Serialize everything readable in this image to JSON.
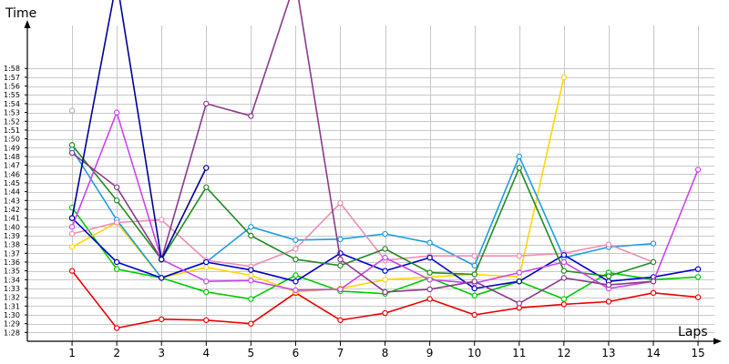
{
  "chart_data": {
    "type": "line",
    "xlabel": "Laps",
    "ylabel": "Time",
    "xlim": [
      0,
      15.5
    ],
    "ylim": [
      "1:27",
      "2:09"
    ],
    "grid": true,
    "y_tick_labels": [
      "1:28",
      "1:29",
      "1:30",
      "1:31",
      "1:32",
      "1:33",
      "1:34",
      "1:35",
      "1:36",
      "1:37",
      "1:38",
      "1:39",
      "1:40",
      "1:41",
      "1:42",
      "1:43",
      "1:44",
      "1:45",
      "1:46",
      "1:47",
      "1:48",
      "1:49",
      "1:50",
      "1:51",
      "1:52",
      "1:53",
      "1:54",
      "1:55",
      "1:56",
      "1:57",
      "1:58"
    ],
    "x_tick_labels": [
      "1",
      "2",
      "3",
      "4",
      "5",
      "6",
      "7",
      "8",
      "9",
      "10",
      "11",
      "12",
      "13",
      "14",
      "15"
    ],
    "series": [
      {
        "color": "#ee0000",
        "x": [
          1,
          2,
          3,
          4,
          5,
          6,
          7,
          8,
          9,
          10,
          11,
          12,
          13,
          14,
          15
        ],
        "y": [
          "1:35.0",
          "1:28.5",
          "1:29.5",
          "1:29.4",
          "1:29.0",
          "1:32.5",
          "1:29.4",
          "1:30.2",
          "1:31.8",
          "1:30.0",
          "1:30.8",
          "1:31.2",
          "1:31.5",
          "1:32.5",
          "1:32.0"
        ]
      },
      {
        "color": "#00cc00",
        "x": [
          1,
          2,
          3,
          4,
          5,
          6,
          7,
          8,
          9,
          10,
          11,
          12,
          13,
          14,
          15
        ],
        "y": [
          "1:42.2",
          "1:35.2",
          "1:34.2",
          "1:32.6",
          "1:31.8",
          "1:34.5",
          "1:32.7",
          "1:32.4",
          "1:34.2",
          "1:32.2",
          "1:33.8",
          "1:31.8",
          "1:34.8",
          "1:34.0",
          "1:34.3"
        ]
      },
      {
        "color": "#ffd700",
        "x": [
          1,
          2,
          3,
          4,
          5,
          6,
          7,
          8,
          9,
          10,
          11,
          12
        ],
        "y": [
          "1:37.7",
          "1:40.5",
          "1:34.2",
          "1:35.4",
          "1:34.5",
          "1:32.6",
          "1:33.0",
          "1:34.0",
          "1:34.3",
          "1:34.6",
          "1:34.3",
          "1:57.0"
        ]
      },
      {
        "color": "#1e9be6",
        "x": [
          1,
          2,
          3,
          4,
          5,
          6,
          7,
          8,
          9,
          10,
          11,
          12,
          13,
          14
        ],
        "y": [
          "1:48.8",
          "1:40.8",
          "1:34.2",
          "1:36.0",
          "1:40.0",
          "1:38.5",
          "1:38.6",
          "1:39.2",
          "1:38.2",
          "1:35.6",
          "1:48.0",
          "1:36.5",
          "1:37.7",
          "1:38.1"
        ]
      },
      {
        "color": "#f08cb4",
        "x": [
          1,
          2,
          3,
          4,
          5,
          6,
          7,
          8,
          9,
          10,
          11,
          12,
          13,
          14
        ],
        "y": [
          "1:39.2",
          "1:40.5",
          "1:40.8",
          "1:36.2",
          "1:35.5",
          "1:37.5",
          "1:42.7",
          "1:36.2",
          "1:36.7",
          "1:36.7",
          "1:36.7",
          "1:37.0",
          "1:38.0",
          "1:36.0"
        ]
      },
      {
        "color": "#0000cc",
        "x": [
          1,
          2,
          3,
          4,
          5,
          6,
          7,
          8,
          9,
          10,
          11,
          12,
          13,
          14,
          15
        ],
        "y": [
          "1:41.0",
          "1:36.0",
          "1:34.2",
          "1:36.0",
          "1:35.1",
          "1:33.8",
          "1:37.0",
          "1:35.0",
          "1:36.5",
          "1:33.0",
          "1:33.8",
          "1:36.8",
          "1:33.8",
          "1:34.3",
          "1:35.2"
        ]
      },
      {
        "color": "#228b22",
        "x": [
          1,
          2,
          3,
          4,
          5,
          6,
          7,
          8,
          9,
          10,
          11,
          12,
          13,
          14
        ],
        "y": [
          "1:49.3",
          "1:43.0",
          "1:36.3",
          "1:44.5",
          "1:39.0",
          "1:36.3",
          "1:35.6",
          "1:37.5",
          "1:34.8",
          "1:34.6",
          "1:46.7",
          "1:35.0",
          "1:34.4",
          "1:36.0"
        ]
      },
      {
        "color": "#cc44ee",
        "x": [
          1,
          2,
          3,
          4,
          5,
          6,
          7,
          8,
          9,
          10,
          11,
          12,
          13,
          14,
          15
        ],
        "y": [
          "1:40.0",
          "1:53.0",
          "1:36.3",
          "1:33.8",
          "1:33.9",
          "1:32.8",
          "1:32.9",
          "1:36.5",
          "1:34.0",
          "1:33.6",
          "1:34.8",
          "1:36.0",
          "1:33.0",
          "1:33.8",
          "1:46.5"
        ]
      },
      {
        "color": "#8b3a8b",
        "x": [
          1,
          2,
          3,
          4,
          5,
          6,
          7,
          8,
          9,
          10,
          11,
          12,
          13,
          14
        ],
        "y": [
          "1:48.4",
          "1:44.5",
          "1:36.3",
          "1:54.0",
          "1:52.6",
          "2:08.0",
          "1:36.3",
          "1:32.6",
          "1:32.9",
          "1:33.8",
          "1:31.3",
          "1:34.2",
          "1:33.4",
          "1:33.8"
        ]
      },
      {
        "color": "#000099",
        "x": [
          1,
          2,
          3,
          4
        ],
        "y": [
          "1:41.0",
          "2:08.0",
          "1:36.3",
          "1:46.7"
        ]
      },
      {
        "color": "#b0b0b0",
        "x": [
          1
        ],
        "y": [
          "1:53.2"
        ]
      }
    ]
  }
}
